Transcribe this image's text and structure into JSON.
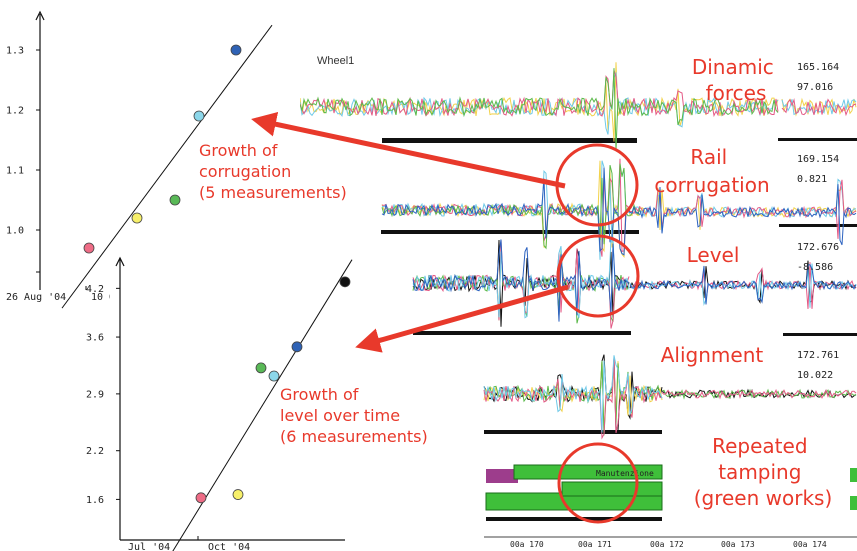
{
  "chart_data": [
    {
      "type": "scatter",
      "title": "",
      "xlabel": "",
      "ylabel": "",
      "x_tick_labels": [
        "26 Aug '04",
        "10 Oc"
      ],
      "y_ticks": [
        1.0,
        1.1,
        1.2,
        1.3
      ],
      "y_tick_labels": [
        "1.0",
        "1.1",
        "1.2",
        "1.3"
      ],
      "ylim": [
        0.9,
        1.35
      ],
      "x_index": [
        1,
        2,
        3,
        4,
        5
      ],
      "values": [
        0.97,
        1.02,
        1.05,
        1.19,
        1.3
      ],
      "point_colors": [
        "#ee6c86",
        "#f7f06a",
        "#59b957",
        "#8cd7ea",
        "#2f62b5"
      ],
      "trend_line": true,
      "grid": false
    },
    {
      "type": "scatter",
      "title": "",
      "xlabel": "",
      "ylabel": "",
      "x_tick_labels": [
        "Jul '04",
        "Oct '04"
      ],
      "y_ticks": [
        1.6,
        2.2,
        2.9,
        3.6,
        4.2
      ],
      "y_tick_labels": [
        "1.6",
        "2.2",
        "2.9",
        "3.6",
        "4.2"
      ],
      "ylim": [
        1.1,
        4.5
      ],
      "x_index": [
        1,
        2,
        3,
        4,
        5,
        6
      ],
      "values": [
        1.62,
        1.66,
        3.22,
        3.12,
        3.48,
        4.28
      ],
      "point_colors": [
        "#ee6c86",
        "#f7f06a",
        "#59b957",
        "#8cd7ea",
        "#2f62b5",
        "#111111"
      ],
      "trend_line": true,
      "grid": false
    }
  ],
  "signal_panel": {
    "wheel_label": "Wheel1",
    "channels": [
      {
        "label": "Dinamic\nforces",
        "readout_top": "165.164",
        "readout_bottom": "97.016"
      },
      {
        "label": "Rail\ncorrugation",
        "readout_top": "169.154",
        "readout_bottom": "0.821"
      },
      {
        "label": "Level",
        "readout_top": "172.676",
        "readout_bottom": "-8.586"
      },
      {
        "label": "Alignment",
        "readout_top": "172.761",
        "readout_bottom": "10.022"
      },
      {
        "label": "Repeated\ntamping\n(green works)",
        "readout_top": "",
        "readout_bottom": ""
      }
    ],
    "works_bar_label": "Manutenzione",
    "position_ticks": [
      "00a 170",
      "00a 171",
      "00a 172",
      "00a 173",
      "00a 174"
    ]
  },
  "annotations": {
    "corrugation_growth": "Growth of\ncorrugation\n(5 measurements)",
    "level_growth": "Growth of\nlevel over time\n(6 measurements)"
  },
  "colors": {
    "annotation_red": "#e8392b",
    "signal_colors": [
      "#f2d24b",
      "#6fc9e8",
      "#e45a86",
      "#5bb94a",
      "#111111",
      "#9bd0ef",
      "#2c62c0"
    ],
    "works_green": "#3fbf3a",
    "works_purple": "#9d3d8c"
  }
}
